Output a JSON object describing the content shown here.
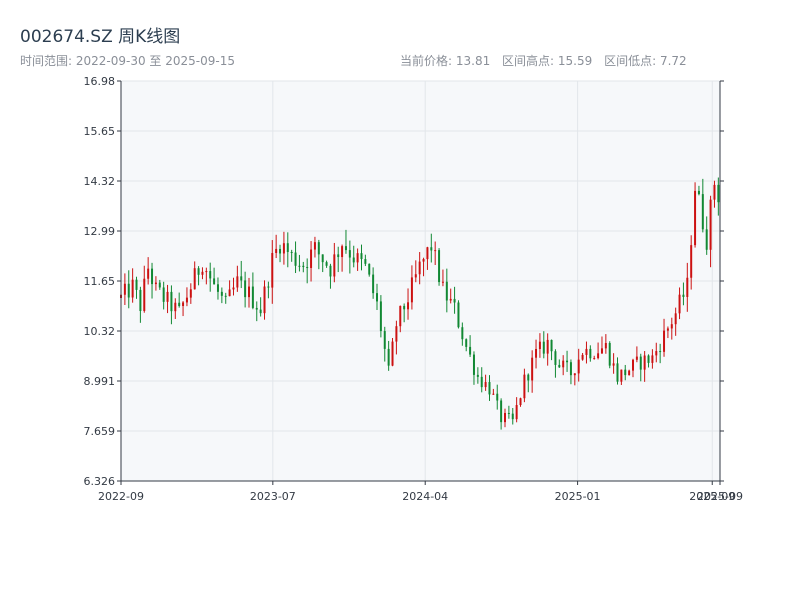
{
  "header": {
    "title": "002674.SZ 周K线图",
    "date_range": "时间范围: 2022-09-30 至 2025-09-15",
    "current_price": "当前价格: 13.81",
    "range_high": "区间高点: 15.59",
    "range_low": "区间低点: 7.72"
  },
  "colors": {
    "up": "#cc1111",
    "down": "#118833",
    "plot_bg": "#f6f8fa",
    "grid": "#e2e6ea",
    "axis": "#333a44"
  },
  "chart_data": {
    "type": "candlestick",
    "title": "002674.SZ 周K线图",
    "xlabel": "",
    "ylabel": "",
    "ylim": [
      6.326,
      16.98
    ],
    "yticks": [
      "6.326",
      "7.659",
      "8.991",
      "10.32",
      "11.65",
      "12.99",
      "14.32",
      "15.65",
      "16.98"
    ],
    "xlim": [
      "2022-09-30",
      "2025-09-15"
    ],
    "xticks": [
      {
        "date": "2022-09-30",
        "label": "2022-09"
      },
      {
        "date": "2023-07-01",
        "label": "2023-07"
      },
      {
        "date": "2024-04-01",
        "label": "2024-04"
      },
      {
        "date": "2025-01-01",
        "label": "2025-01"
      },
      {
        "date": "2025-09-01",
        "label": "2025-09"
      },
      {
        "date": "2025-09-15",
        "label": "2025-09"
      }
    ],
    "grid": true,
    "anchors": [
      [
        "2022-09-30",
        11.2
      ],
      [
        "2022-10-21",
        11.5
      ],
      [
        "2022-11-04",
        11.0
      ],
      [
        "2022-11-18",
        12.0
      ],
      [
        "2022-12-02",
        11.4
      ],
      [
        "2022-12-23",
        11.1
      ],
      [
        "2023-01-13",
        10.8
      ],
      [
        "2023-02-03",
        11.5
      ],
      [
        "2023-02-24",
        12.2
      ],
      [
        "2023-03-17",
        11.5
      ],
      [
        "2023-04-07",
        11.0
      ],
      [
        "2023-04-28",
        11.6
      ],
      [
        "2023-05-19",
        11.3
      ],
      [
        "2023-06-09",
        10.9
      ],
      [
        "2023-06-30",
        12.2
      ],
      [
        "2023-07-14",
        12.7
      ],
      [
        "2023-08-04",
        12.3
      ],
      [
        "2023-08-25",
        12.1
      ],
      [
        "2023-09-15",
        12.5
      ],
      [
        "2023-10-13",
        12.0
      ],
      [
        "2023-11-03",
        12.7
      ],
      [
        "2023-11-24",
        12.3
      ],
      [
        "2023-12-15",
        12.0
      ],
      [
        "2024-01-05",
        11.0
      ],
      [
        "2024-01-26",
        9.2
      ],
      [
        "2024-02-09",
        10.5
      ],
      [
        "2024-03-01",
        11.2
      ],
      [
        "2024-03-22",
        12.0
      ],
      [
        "2024-04-12",
        12.6
      ],
      [
        "2024-05-03",
        11.4
      ],
      [
        "2024-05-24",
        10.9
      ],
      [
        "2024-06-14",
        9.9
      ],
      [
        "2024-07-05",
        9.1
      ],
      [
        "2024-07-26",
        8.8
      ],
      [
        "2024-08-16",
        8.0
      ],
      [
        "2024-09-06",
        7.9
      ],
      [
        "2024-09-27",
        9.0
      ],
      [
        "2024-10-18",
        9.7
      ],
      [
        "2024-11-08",
        10.0
      ],
      [
        "2024-11-29",
        9.4
      ],
      [
        "2024-12-20",
        9.2
      ],
      [
        "2025-01-10",
        9.8
      ],
      [
        "2025-01-31",
        9.8
      ],
      [
        "2025-02-21",
        9.9
      ],
      [
        "2025-03-14",
        9.1
      ],
      [
        "2025-04-04",
        9.3
      ],
      [
        "2025-04-25",
        9.5
      ],
      [
        "2025-05-16",
        9.6
      ],
      [
        "2025-06-06",
        10.2
      ],
      [
        "2025-06-27",
        10.8
      ],
      [
        "2025-07-18",
        11.5
      ],
      [
        "2025-08-01",
        14.2
      ],
      [
        "2025-08-22",
        12.8
      ],
      [
        "2025-09-05",
        14.3
      ],
      [
        "2025-09-15",
        13.81
      ]
    ]
  }
}
